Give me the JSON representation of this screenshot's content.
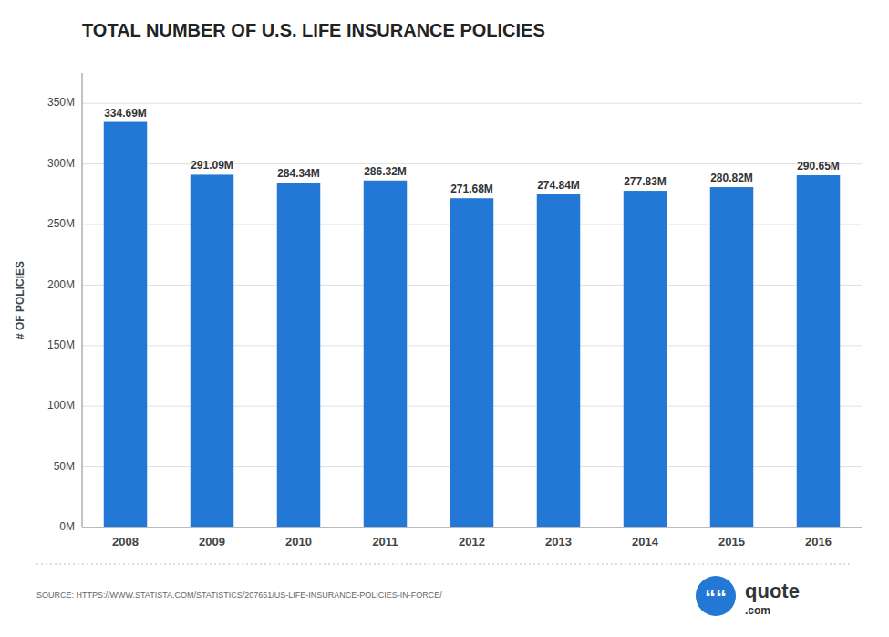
{
  "chart_data": {
    "type": "bar",
    "title": "TOTAL NUMBER OF U.S. LIFE INSURANCE POLICIES",
    "ylabel": "# OF POLICIES",
    "categories": [
      "2008",
      "2009",
      "2010",
      "2011",
      "2012",
      "2013",
      "2014",
      "2015",
      "2016"
    ],
    "values": [
      334.69,
      291.09,
      284.34,
      286.32,
      271.68,
      274.84,
      277.83,
      280.82,
      290.65
    ],
    "value_labels": [
      "334.69M",
      "291.09M",
      "284.34M",
      "286.32M",
      "271.68M",
      "274.84M",
      "277.83M",
      "280.82M",
      "290.65M"
    ],
    "data_labels": true,
    "color": "#2278d4",
    "ylim": [
      0,
      375
    ],
    "yticks": [
      {
        "value": 0,
        "label": "0M"
      },
      {
        "value": 50,
        "label": "50M"
      },
      {
        "value": 100,
        "label": "100M"
      },
      {
        "value": 150,
        "label": "150M"
      },
      {
        "value": 200,
        "label": "200M"
      },
      {
        "value": 250,
        "label": "250M"
      },
      {
        "value": 300,
        "label": "300M"
      },
      {
        "value": 350,
        "label": "350M"
      }
    ],
    "grid": true,
    "annotations": [
      "SOURCE: HTTPS://WWW.STATISTA.COM/STATISTICS/207651/US-LIFE-INSURANCE-POLICIES-IN-FORCE/",
      "““",
      "quote",
      ".com"
    ]
  }
}
